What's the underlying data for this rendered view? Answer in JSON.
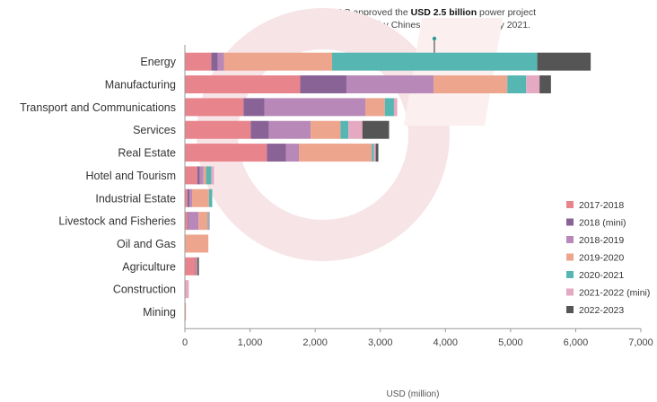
{
  "chart_data": {
    "type": "bar",
    "stacked": true,
    "orientation": "horizontal",
    "categories": [
      "Energy",
      "Manufacturing",
      "Transport and Communications",
      "Services",
      "Real Estate",
      "Hotel and Tourism",
      "Industrial Estate",
      "Livestock and Fisheries",
      "Oil and Gas",
      "Agriculture",
      "Construction",
      "Mining"
    ],
    "series": [
      {
        "name": "2017-2018",
        "color": "#e8848c",
        "values": [
          405,
          1770,
          900,
          1010,
          1260,
          190,
          40,
          40,
          10,
          160,
          0,
          5
        ]
      },
      {
        "name": "2018 (mini)",
        "color": "#8a6396",
        "values": [
          100,
          710,
          320,
          280,
          290,
          40,
          30,
          10,
          0,
          5,
          0,
          0
        ]
      },
      {
        "name": "2018-2019",
        "color": "#b889b8",
        "values": [
          95,
          1340,
          1550,
          640,
          200,
          55,
          40,
          160,
          0,
          15,
          0,
          0
        ]
      },
      {
        "name": "2019-2020",
        "color": "#eea58e",
        "values": [
          1660,
          1130,
          300,
          460,
          1120,
          40,
          260,
          140,
          350,
          10,
          0,
          5
        ]
      },
      {
        "name": "2020-2021",
        "color": "#56b6b2",
        "values": [
          3150,
          290,
          140,
          120,
          30,
          80,
          50,
          20,
          0,
          0,
          0,
          0
        ]
      },
      {
        "name": "2021-2022 (mini)",
        "color": "#e6a9c2",
        "values": [
          0,
          205,
          50,
          215,
          30,
          40,
          0,
          15,
          0,
          0,
          60,
          0
        ]
      },
      {
        "name": "2022-2023",
        "color": "#555555",
        "values": [
          820,
          175,
          0,
          410,
          40,
          0,
          0,
          0,
          0,
          25,
          0,
          0
        ]
      }
    ],
    "xlabel": "USD (million)",
    "xlim": [
      0,
      7000
    ],
    "xticks": [
      0,
      1000,
      2000,
      3000,
      4000,
      5000,
      6000,
      7000
    ],
    "xtick_labels": [
      "0",
      "1,000",
      "2,000",
      "3,000",
      "4,000",
      "5,000",
      "6,000",
      "7,000"
    ],
    "grid": false,
    "legend_position": "right",
    "annotation": {
      "prefix": "SAC approved the ",
      "bold": "USD 2.5 billion",
      "line1_rest": " power project",
      "line2": "proposed by Chinese companies in May 2021.",
      "x_value": 3830,
      "category": "Energy"
    }
  }
}
